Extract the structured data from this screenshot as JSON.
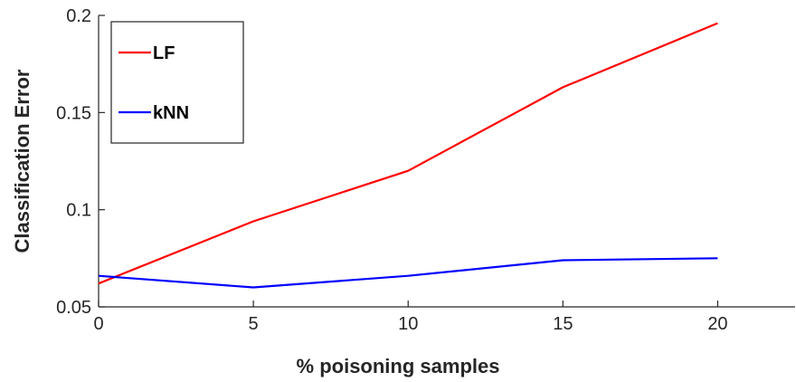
{
  "chart_data": {
    "type": "line",
    "x": [
      0,
      5,
      10,
      15,
      20
    ],
    "series": [
      {
        "name": "LF",
        "color": "#ff0000",
        "values": [
          0.062,
          0.094,
          0.12,
          0.163,
          0.196
        ]
      },
      {
        "name": "kNN",
        "color": "#0000ff",
        "values": [
          0.066,
          0.06,
          0.066,
          0.074,
          0.075
        ]
      }
    ],
    "xlabel": "% poisoning samples",
    "ylabel": "Classification Error",
    "xlim": [
      0,
      22.5
    ],
    "ylim": [
      0.05,
      0.2
    ],
    "xticks": [
      0,
      5,
      10,
      15,
      20
    ],
    "xtick_labels": [
      "0",
      "5",
      "10",
      "15",
      "20"
    ],
    "yticks": [
      0.05,
      0.1,
      0.15,
      0.2
    ],
    "ytick_labels": [
      "0.05",
      "0.1",
      "0.15",
      "0.2"
    ],
    "grid": false,
    "legend": {
      "position": "top-left",
      "entries": [
        "LF",
        "kNN"
      ]
    }
  }
}
